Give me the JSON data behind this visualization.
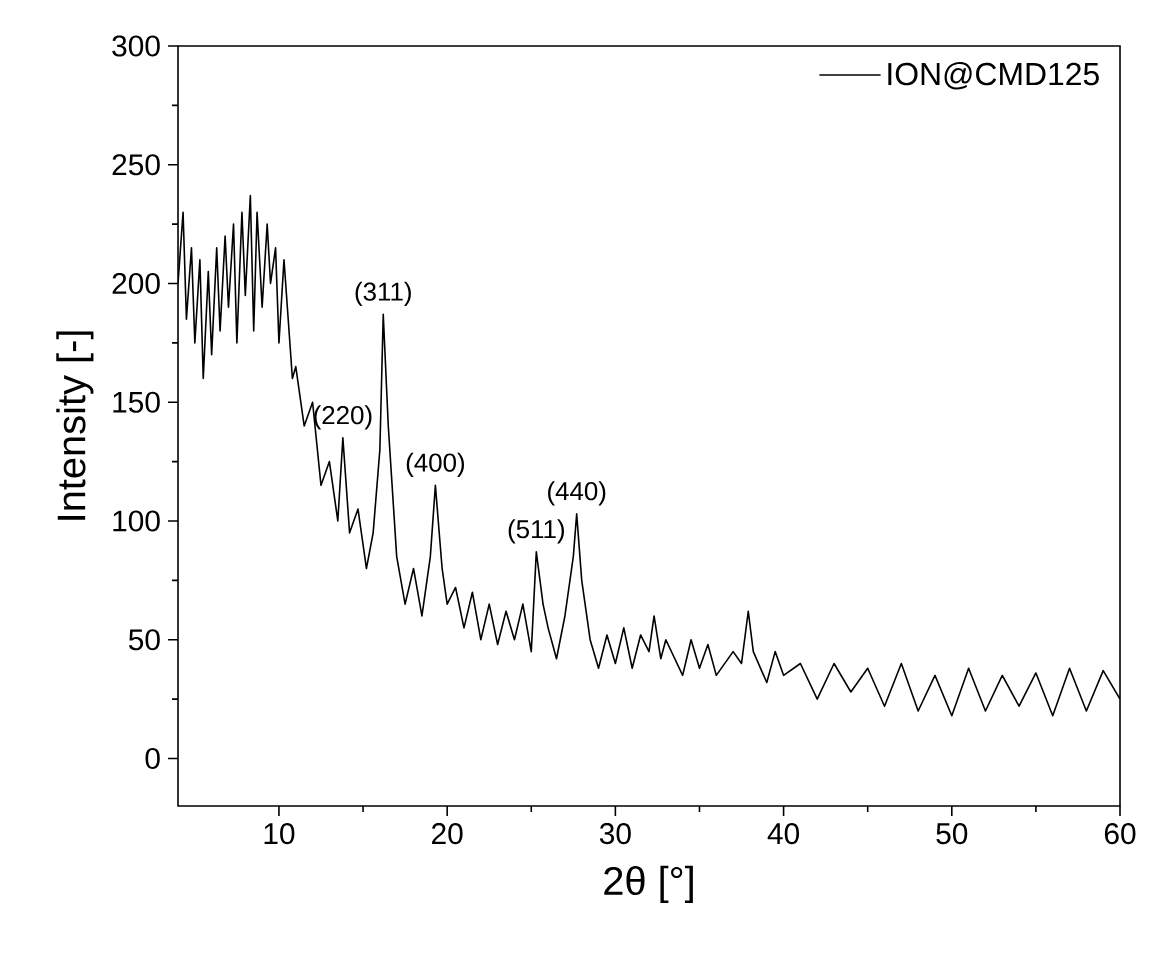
{
  "chart_data": {
    "type": "line",
    "xlabel": "2θ [°]",
    "ylabel": "Intensity [-]",
    "xlim": [
      4,
      60
    ],
    "ylim": [
      -20,
      300
    ],
    "xticks": [
      10,
      20,
      30,
      40,
      50,
      60
    ],
    "yticks": [
      0,
      50,
      100,
      150,
      200,
      250,
      300
    ],
    "legend": "top right",
    "grid": false,
    "marker": "none",
    "line_style": "solid",
    "series": [
      {
        "name": "ION@CMD125",
        "color": "#000000",
        "x": [
          4,
          4.3,
          4.5,
          4.8,
          5,
          5.3,
          5.5,
          5.8,
          6,
          6.3,
          6.5,
          6.8,
          7,
          7.3,
          7.5,
          7.8,
          8,
          8.3,
          8.5,
          8.7,
          9,
          9.3,
          9.5,
          9.8,
          10,
          10.3,
          10.8,
          11,
          11.5,
          12,
          12.5,
          13,
          13.5,
          13.8,
          14.2,
          14.7,
          15.2,
          15.6,
          16,
          16.2,
          16.5,
          17,
          17.5,
          18,
          18.5,
          19,
          19.3,
          19.7,
          20,
          20.5,
          21,
          21.5,
          22,
          22.5,
          23,
          23.5,
          24,
          24.5,
          25,
          25.3,
          25.7,
          26,
          26.5,
          27,
          27.5,
          27.7,
          28,
          28.5,
          29,
          29.5,
          30,
          30.5,
          31,
          31.5,
          32,
          32.3,
          32.7,
          33,
          34,
          34.5,
          35,
          35.5,
          36,
          37,
          37.5,
          37.9,
          38.2,
          39,
          39.5,
          40,
          41,
          42,
          43,
          44,
          45,
          46,
          47,
          48,
          49,
          50,
          51,
          52,
          53,
          54,
          55,
          56,
          57,
          58,
          59,
          60
        ],
        "values": [
          200,
          230,
          185,
          215,
          175,
          210,
          160,
          205,
          170,
          215,
          180,
          220,
          190,
          225,
          175,
          230,
          195,
          237,
          180,
          230,
          190,
          225,
          200,
          215,
          175,
          210,
          160,
          165,
          140,
          150,
          115,
          125,
          100,
          135,
          95,
          105,
          80,
          95,
          130,
          187,
          140,
          85,
          65,
          80,
          60,
          85,
          115,
          80,
          65,
          72,
          55,
          70,
          50,
          65,
          48,
          62,
          50,
          65,
          45,
          87,
          65,
          55,
          42,
          60,
          85,
          103,
          75,
          50,
          38,
          52,
          40,
          55,
          38,
          52,
          45,
          60,
          42,
          50,
          35,
          50,
          38,
          48,
          35,
          45,
          40,
          62,
          45,
          32,
          45,
          35,
          40,
          25,
          40,
          28,
          38,
          22,
          40,
          20,
          35,
          18,
          38,
          20,
          35,
          22,
          36,
          18,
          38,
          20,
          37,
          25
        ]
      }
    ],
    "annotations": [
      {
        "text": "(220)",
        "x": 13.8,
        "y": 135
      },
      {
        "text": "(311)",
        "x": 16.2,
        "y": 187
      },
      {
        "text": "(400)",
        "x": 19.3,
        "y": 115
      },
      {
        "text": "(511)",
        "x": 25.3,
        "y": 87
      },
      {
        "text": "(440)",
        "x": 27.7,
        "y": 103
      }
    ]
  }
}
